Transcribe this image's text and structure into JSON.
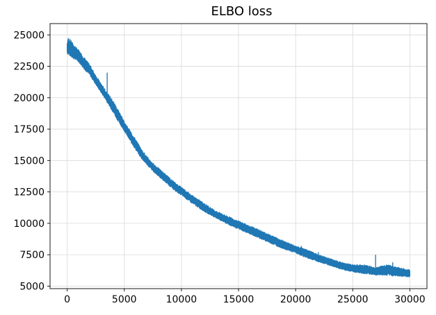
{
  "chart_data": {
    "type": "line",
    "title": "ELBO loss",
    "xlabel": "",
    "ylabel": "",
    "xlim": [
      -1500,
      31500
    ],
    "ylim": [
      4800,
      25900
    ],
    "xticks": [
      0,
      5000,
      10000,
      15000,
      20000,
      25000,
      30000
    ],
    "yticks": [
      5000,
      7500,
      10000,
      12500,
      15000,
      17500,
      20000,
      22500,
      25000
    ],
    "grid": true,
    "series": [
      {
        "name": "",
        "color": "#1f77b4",
        "x": [
          0,
          100,
          300,
          600,
          1000,
          1500,
          2000,
          2500,
          3000,
          3500,
          4000,
          4500,
          5000,
          5500,
          6000,
          6500,
          7000,
          7500,
          8000,
          8500,
          9000,
          9500,
          10000,
          11000,
          12000,
          13000,
          14000,
          15000,
          16000,
          17000,
          18000,
          19000,
          20000,
          21000,
          22000,
          23000,
          24000,
          25000,
          26000,
          27000,
          28000,
          29000,
          30000
        ],
        "low": [
          23500,
          23300,
          23200,
          23000,
          22800,
          22200,
          21700,
          21000,
          20300,
          19600,
          18800,
          18000,
          17300,
          16500,
          15800,
          15100,
          14600,
          14100,
          13700,
          13300,
          12900,
          12500,
          12200,
          11500,
          10900,
          10400,
          9900,
          9500,
          9100,
          8700,
          8300,
          7900,
          7600,
          7200,
          6900,
          6600,
          6300,
          6100,
          5950,
          5850,
          5800,
          5750,
          5700
        ],
        "high": [
          24400,
          24800,
          24600,
          24200,
          23800,
          23200,
          22600,
          21800,
          21100,
          20400,
          19800,
          19000,
          18100,
          17400,
          16700,
          15900,
          15300,
          14800,
          14400,
          14000,
          13600,
          13200,
          12900,
          12200,
          11600,
          11000,
          10600,
          10200,
          9800,
          9400,
          9000,
          8600,
          8200,
          7900,
          7500,
          7200,
          6900,
          6700,
          6700,
          6500,
          6700,
          6500,
          6300
        ],
        "spikes": [
          [
            27000,
            7500
          ],
          [
            28500,
            6900
          ],
          [
            22000,
            7700
          ],
          [
            20500,
            8200
          ],
          [
            3500,
            22000
          ]
        ]
      }
    ]
  }
}
